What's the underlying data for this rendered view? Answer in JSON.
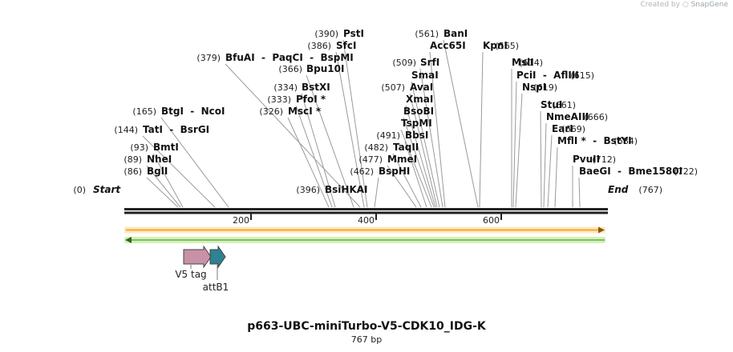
{
  "credit": {
    "prefix": "Created by",
    "brand": "SnapGene"
  },
  "sequence": {
    "name": "p663-UBC-miniTurbo-V5-CDK10_IDG-K",
    "length_label": "767 bp",
    "length": 767
  },
  "ruler": {
    "ticks": [
      200,
      400,
      600
    ]
  },
  "ends": [
    {
      "pos": "(0)",
      "name": "Start"
    },
    {
      "pos": "(767)",
      "name": "End"
    }
  ],
  "sites": [
    {
      "pos": "(86)",
      "label": "BglI"
    },
    {
      "pos": "(89)",
      "label": "NheI"
    },
    {
      "pos": "(93)",
      "label": "BmtI"
    },
    {
      "pos": "(144)",
      "label": "TatI  -  BsrGI"
    },
    {
      "pos": "(165)",
      "label": "BtgI  -  NcoI"
    },
    {
      "pos": "(326)",
      "label": "MscI *"
    },
    {
      "pos": "(333)",
      "label": "PfoI *"
    },
    {
      "pos": "(334)",
      "label": "BstXI"
    },
    {
      "pos": "(366)",
      "label": "Bpu10I"
    },
    {
      "pos": "(379)",
      "label": "BfuAI  -  PaqCI  -  BspMI"
    },
    {
      "pos": "(386)",
      "label": "SfcI"
    },
    {
      "pos": "(390)",
      "label": "PstI"
    },
    {
      "pos": "(396)",
      "label": "BsiHKAI"
    },
    {
      "pos": "(462)",
      "label": "BspHI"
    },
    {
      "pos": "(477)",
      "label": "MmeI"
    },
    {
      "pos": "(482)",
      "label": "TaqII"
    },
    {
      "pos": "(491)",
      "label": "BbsI"
    },
    {
      "pos": "",
      "label": "TspMI"
    },
    {
      "pos": "",
      "label": "BsoBI"
    },
    {
      "pos": "",
      "label": "XmaI"
    },
    {
      "pos": "(507)",
      "label": "AvaI"
    },
    {
      "pos": "",
      "label": "SmaI"
    },
    {
      "pos": "(509)",
      "label": "SrfI"
    },
    {
      "pos": "",
      "label": "Acc65I"
    },
    {
      "pos": "(561)",
      "label": "BanI"
    },
    {
      "pos": "(565)",
      "label": "KpnI"
    },
    {
      "pos": "(614)",
      "label": "MslI"
    },
    {
      "pos": "(615)",
      "label": "PciI  -  AflIII"
    },
    {
      "pos": "(619)",
      "label": "NspI"
    },
    {
      "pos": "(661)",
      "label": "StuI"
    },
    {
      "pos": "(666)",
      "label": "NmeAIII"
    },
    {
      "pos": "(669)",
      "label": "EarI"
    },
    {
      "pos": "(684)",
      "label": "MflI *  -  BstYI"
    },
    {
      "pos": "(712)",
      "label": "PvuII"
    },
    {
      "pos": "(722)",
      "label": "BaeGI  -  Bme1580I"
    }
  ],
  "features": [
    {
      "name": "V5 tag",
      "color": "#c991a8"
    },
    {
      "name": "attB1",
      "color": "#2e8291"
    }
  ],
  "bars": {
    "orange": "#f2a928",
    "green": "#7bc34f"
  }
}
